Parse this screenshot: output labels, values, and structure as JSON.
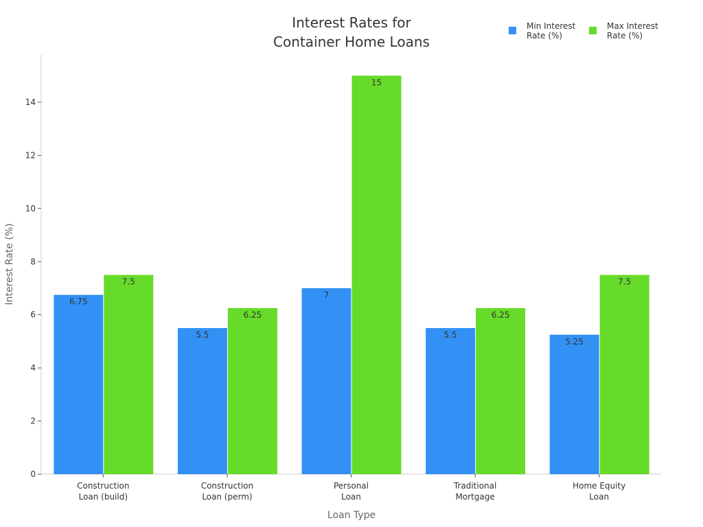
{
  "chart_data": {
    "type": "bar",
    "title": "Interest Rates for\nContainer Home Loans",
    "xlabel": "Loan Type",
    "ylabel": "Interest Rate (%)",
    "categories": [
      "Construction\nLoan (build)",
      "Construction\nLoan (perm)",
      "Personal\nLoan",
      "Traditional\nMortgage",
      "Home Equity\nLoan"
    ],
    "series": [
      {
        "name": "Min Interest\nRate (%)",
        "values": [
          6.75,
          5.5,
          7,
          5.5,
          5.25
        ],
        "color": "#3391f5"
      },
      {
        "name": "Max Interest\nRate (%)",
        "values": [
          7.5,
          6.25,
          15,
          6.25,
          7.5
        ],
        "color": "#66db29"
      }
    ],
    "ylim": [
      0,
      15.8
    ],
    "yticks": [
      0,
      2,
      4,
      6,
      8,
      10,
      12,
      14
    ],
    "grid": false,
    "legend": "top-right"
  }
}
